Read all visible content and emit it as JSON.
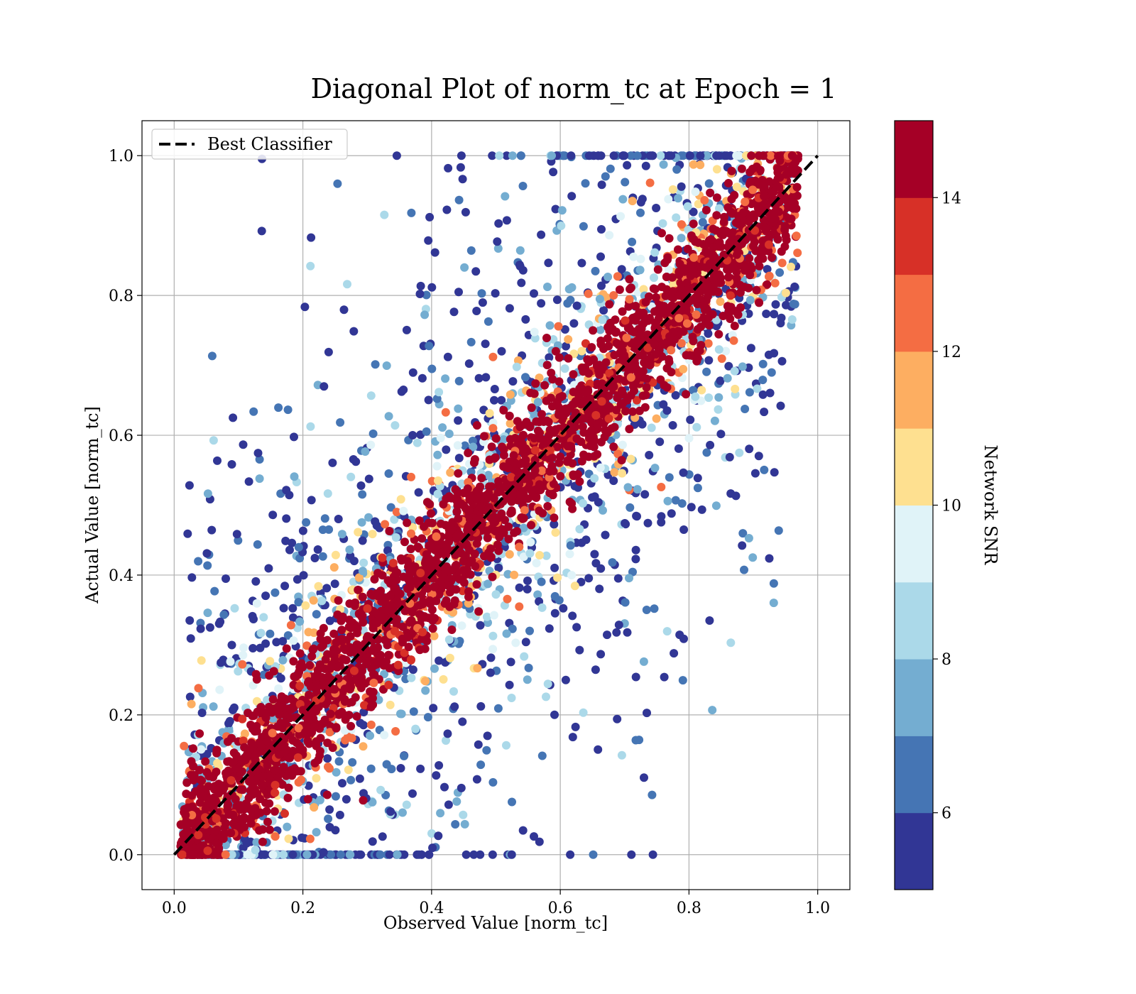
{
  "chart_data": {
    "type": "scatter",
    "title": "Diagonal Plot of norm_tc at Epoch = 1",
    "xlabel": "Observed Value [norm_tc]",
    "ylabel": "Actual Value [norm_tc]",
    "xlim": [
      -0.05,
      1.05
    ],
    "ylim": [
      -0.05,
      1.05
    ],
    "xticks": [
      "0.0",
      "0.2",
      "0.4",
      "0.6",
      "0.8",
      "1.0"
    ],
    "yticks": [
      "0.0",
      "0.2",
      "0.4",
      "0.6",
      "0.8",
      "1.0"
    ],
    "grid": true,
    "legend": {
      "placement": "upper-left",
      "entries": [
        "Best Classifier"
      ]
    },
    "reference_line": {
      "name": "Best Classifier",
      "style": "dashed",
      "color": "#000000",
      "x": [
        0,
        1
      ],
      "y": [
        0,
        1
      ]
    },
    "colorbar": {
      "label": "Network SNR",
      "range": [
        5,
        15
      ],
      "ticks": [
        "6",
        "8",
        "10",
        "12",
        "14"
      ],
      "colors": [
        "#313695",
        "#4575b4",
        "#74add1",
        "#abd9e9",
        "#e0f3f8",
        "#fee090",
        "#fdae61",
        "#f46d43",
        "#d73027",
        "#a50026"
      ]
    },
    "scatter_summary": {
      "x_range": [
        0.0,
        0.98
      ],
      "y_range": [
        0.0,
        1.0
      ],
      "description_colors": "high-SNR points (≥14) cluster along the diagonal y≈x; low-SNR points (5–9) scattered widely"
    }
  }
}
